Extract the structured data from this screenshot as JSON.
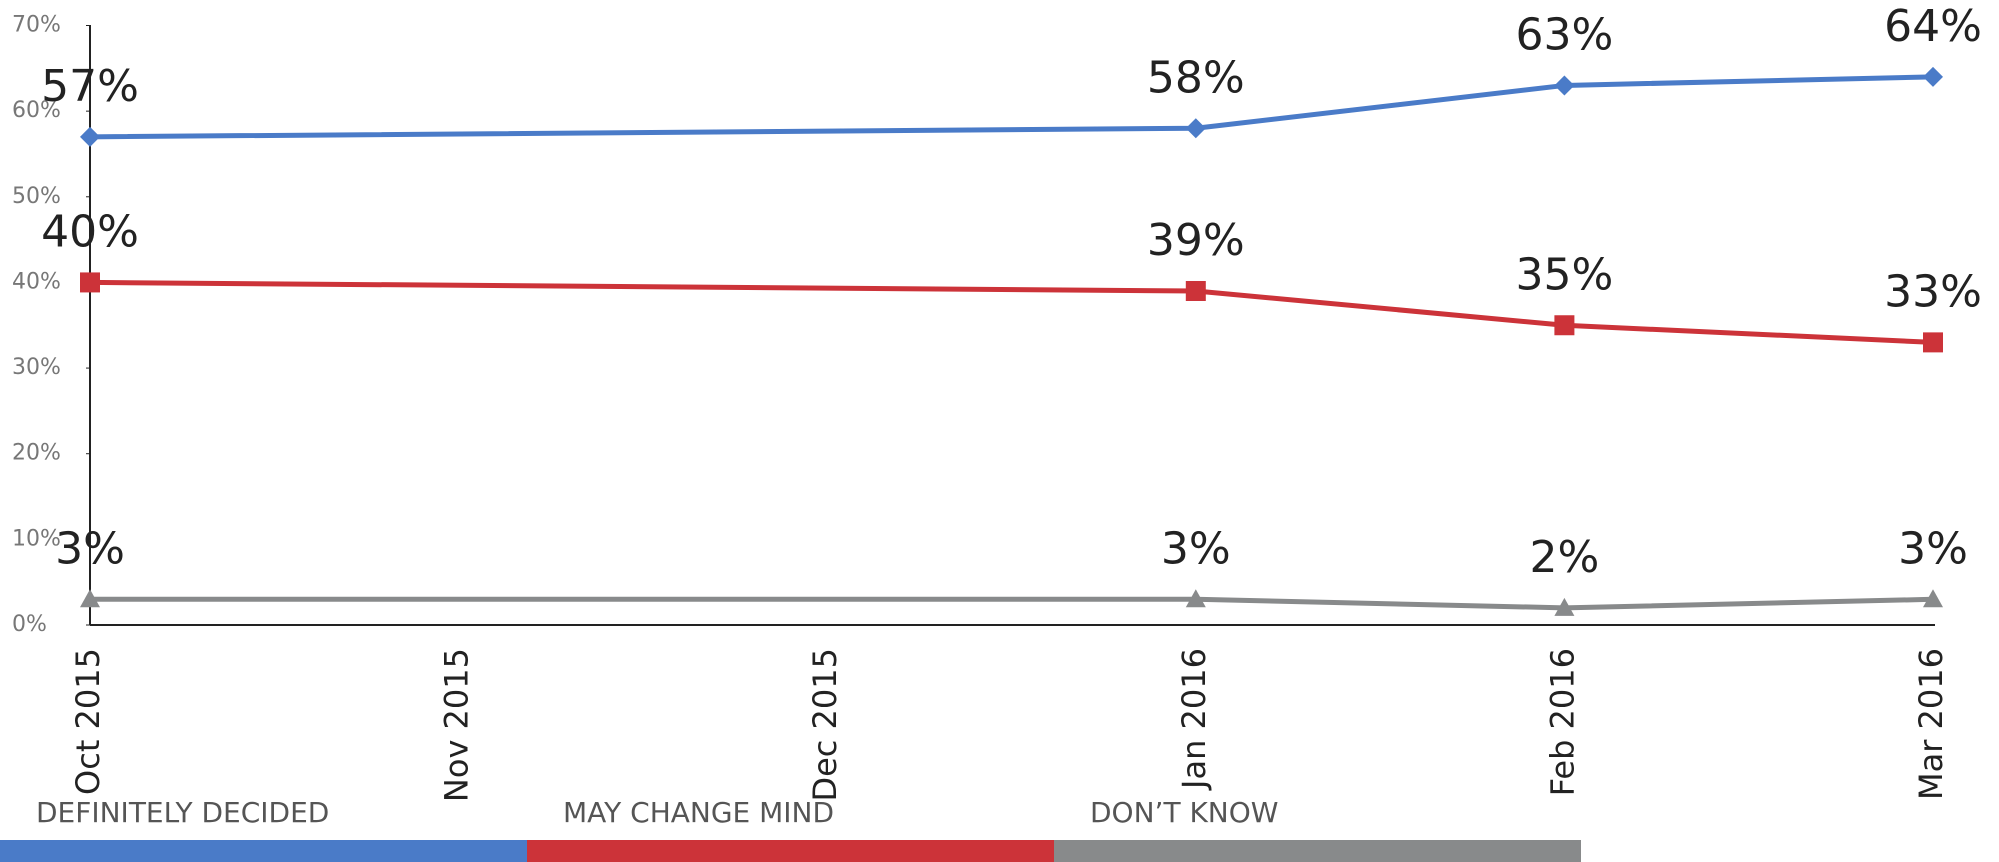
{
  "chart_data": {
    "type": "line",
    "categories": [
      "Oct 2015",
      "Nov 2015",
      "Dec 2015",
      "Jan 2016",
      "Feb 2016",
      "Mar 2016"
    ],
    "series": [
      {
        "name": "DEFINITELY DECIDED",
        "color": "#4a7bc8",
        "marker": "diamond",
        "x": [
          "Oct 2015",
          "Jan 2016",
          "Feb 2016",
          "Mar 2016"
        ],
        "values": [
          57,
          58,
          63,
          64
        ],
        "value_labels": [
          "57%",
          "58%",
          "63%",
          "64%"
        ]
      },
      {
        "name": "MAY CHANGE MIND",
        "color": "#cc3339",
        "marker": "square",
        "x": [
          "Oct 2015",
          "Jan 2016",
          "Feb 2016",
          "Mar 2016"
        ],
        "values": [
          40,
          39,
          35,
          33
        ],
        "value_labels": [
          "40%",
          "39%",
          "35%",
          "33%"
        ]
      },
      {
        "name": "DON’T KNOW",
        "color": "#888a8b",
        "marker": "triangle",
        "x": [
          "Oct 2015",
          "Jan 2016",
          "Feb 2016",
          "Mar 2016"
        ],
        "values": [
          3,
          3,
          2,
          3
        ],
        "value_labels": [
          "3%",
          "3%",
          "2%",
          "3%"
        ]
      }
    ],
    "ylim": [
      0,
      70
    ],
    "yticks": [
      {
        "value": 0,
        "label": "0%"
      },
      {
        "value": 10,
        "label": "10%"
      },
      {
        "value": 20,
        "label": "20%"
      },
      {
        "value": 30,
        "label": "30%"
      },
      {
        "value": 40,
        "label": "40%"
      },
      {
        "value": 50,
        "label": "50%"
      },
      {
        "value": 60,
        "label": "60%"
      },
      {
        "value": 70,
        "label": "70%"
      }
    ],
    "grid": false,
    "legend": "bottom"
  }
}
